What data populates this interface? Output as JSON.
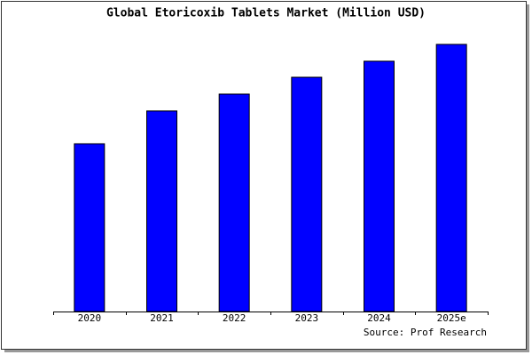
{
  "chart_data": {
    "type": "bar",
    "title": "Global Etoricoxib Tablets Market (Million USD)",
    "categories": [
      "2020",
      "2021",
      "2022",
      "2023",
      "2024",
      "2025e"
    ],
    "values": [
      62.8,
      75.1,
      81.4,
      87.7,
      93.7,
      100
    ],
    "color": "#0000ff",
    "ylim": [
      0,
      100
    ],
    "source": "Source: Prof Research"
  }
}
